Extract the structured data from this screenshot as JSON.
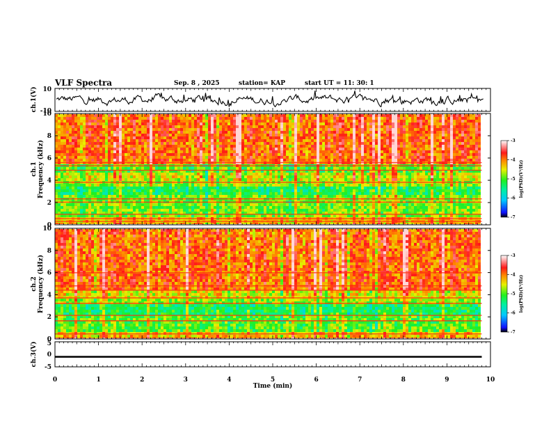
{
  "header": {
    "title": "VLF Spectra",
    "date": "Sep. 8  , 2025",
    "station": "station= KAP",
    "start": "start  UT  =   11: 30: 1"
  },
  "chart_data": [
    {
      "type": "line",
      "name": "ch1-waveform",
      "ylabel": "ch.1(V)",
      "ylim": [
        -10,
        10
      ],
      "yticks": [
        "10",
        "-10"
      ],
      "xlim": [
        0,
        10
      ],
      "note": "continuous noisy waveform between approx -4 and 5 V, mean about 0 V"
    },
    {
      "type": "heatmap",
      "name": "ch1-spectrogram",
      "ylabel": "ch.1\nFrequency (kHz)",
      "ylim": [
        0,
        10
      ],
      "yticks": [
        "0",
        "2",
        "4",
        "6",
        "8",
        "10"
      ],
      "xlim": [
        0,
        9.8
      ],
      "bands": [
        {
          "from": 0,
          "to": 0.7,
          "level": -4.3
        },
        {
          "from": 0.7,
          "to": 2.6,
          "level": -4.9
        },
        {
          "from": 2.6,
          "to": 3.3,
          "level": -5.3
        },
        {
          "from": 3.3,
          "to": 3.9,
          "level": -4.8
        },
        {
          "from": 3.9,
          "to": 4.7,
          "level": -4.6
        },
        {
          "from": 4.7,
          "to": 5.4,
          "level": -5.0
        },
        {
          "from": 5.4,
          "to": 10,
          "level": -3.9
        }
      ],
      "lines_khz": [
        0.25,
        0.5,
        0.9,
        2.0,
        2.3,
        3.8,
        4.9,
        5.3,
        5.6
      ]
    },
    {
      "type": "heatmap",
      "name": "ch2-spectrogram",
      "ylabel": "ch.2\nFrequency (kHz)",
      "ylim": [
        0,
        10
      ],
      "yticks": [
        "0",
        "2",
        "4",
        "6",
        "8",
        "10"
      ],
      "xlim": [
        0,
        9.8
      ],
      "bands": [
        {
          "from": 0,
          "to": 0.6,
          "level": -4.3
        },
        {
          "from": 0.6,
          "to": 2.0,
          "level": -5.0
        },
        {
          "from": 2.0,
          "to": 3.2,
          "level": -5.3
        },
        {
          "from": 3.2,
          "to": 3.7,
          "level": -4.8
        },
        {
          "from": 3.7,
          "to": 4.5,
          "level": -4.5
        },
        {
          "from": 4.5,
          "to": 10,
          "level": -3.9
        }
      ],
      "lines_khz": [
        0.4,
        1.6,
        2.1,
        3.2,
        3.7,
        4.4,
        4.8,
        6.0
      ]
    },
    {
      "type": "line",
      "name": "ch3-waveform",
      "ylabel": "ch.3(V)",
      "ylim": [
        -5,
        5
      ],
      "yticks": [
        "5",
        "0",
        "-5"
      ],
      "xlim": [
        0,
        9.8
      ],
      "value_approx": -1.0,
      "band_halfwidth": 0.35
    }
  ],
  "colorbar": {
    "label": "log(PSD)(V²/Hz)",
    "range": [
      -7,
      -3
    ],
    "ticks": [
      "-3",
      "-4",
      "-5",
      "-6",
      "-7"
    ]
  },
  "xaxis": {
    "label": "Time  (min)",
    "range": [
      0,
      10
    ],
    "ticks": [
      "0",
      "1",
      "2",
      "3",
      "4",
      "5",
      "6",
      "7",
      "8",
      "9",
      "10"
    ]
  }
}
